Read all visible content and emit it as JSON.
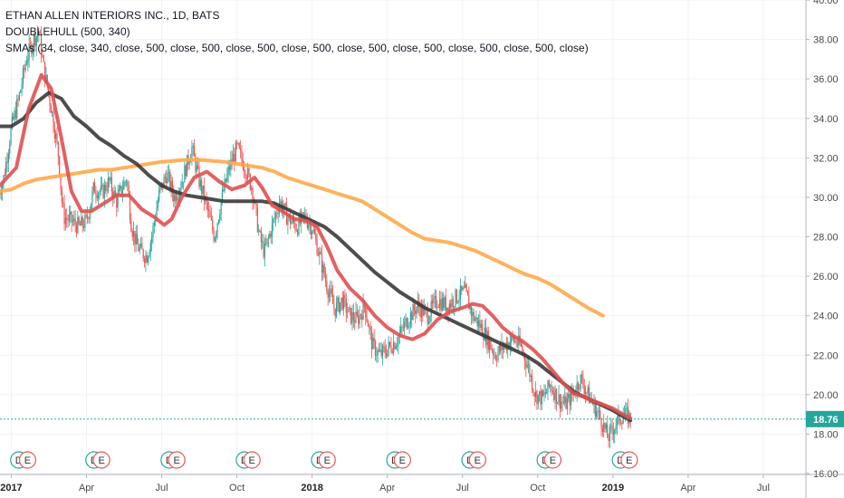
{
  "legend": {
    "line1": "ETHAN ALLEN INTERIORS INC., 1D, BATS",
    "line2": "DOUBLEHULL (500, 340)",
    "line3": "SMAs (34, close, 340, close, 500, close, 500, close, 500, close, 500, close, 500, close, 500, close, 500, close, 500, close)"
  },
  "price_badge": "18.76",
  "colors": {
    "fast_ma": "#e05050",
    "slow_ma": "#3a3a3a",
    "long_ma": "#ffa94a",
    "candle_up": "#26a69a",
    "candle_down": "#ef5350",
    "badge": "#26a69a",
    "dividend": "#26a69a",
    "earnings": "#ef5350"
  },
  "chart_data": {
    "type": "line",
    "title": "ETHAN ALLEN INTERIORS INC., 1D, BATS",
    "x_ticks": [
      "2017",
      "Apr",
      "Jul",
      "Oct",
      "2018",
      "Apr",
      "Jul",
      "Oct",
      "2019",
      "Apr",
      "Jul"
    ],
    "x_tick_months": [
      0,
      3,
      6,
      9,
      12,
      15,
      18,
      21,
      24,
      27,
      30
    ],
    "y_ticks": [
      "16.00",
      "18.00",
      "20.00",
      "22.00",
      "24.00",
      "26.00",
      "28.00",
      "30.00",
      "32.00",
      "34.00",
      "36.00",
      "38.00",
      "40.00"
    ],
    "ylim": [
      16,
      40
    ],
    "xlim_months": [
      -0.45,
      31.7
    ],
    "last_price": 18.76,
    "price_path": [
      [
        -0.5,
        30.2
      ],
      [
        -0.3,
        31.0
      ],
      [
        0.0,
        33.5
      ],
      [
        0.3,
        35.0
      ],
      [
        0.6,
        37.0
      ],
      [
        0.9,
        38.0
      ],
      [
        1.1,
        38.4
      ],
      [
        1.3,
        36.5
      ],
      [
        1.6,
        34.5
      ],
      [
        1.9,
        32.0
      ],
      [
        2.0,
        30.0
      ],
      [
        2.1,
        29.0
      ],
      [
        2.4,
        28.8
      ],
      [
        2.7,
        28.5
      ],
      [
        3.0,
        28.8
      ],
      [
        3.3,
        30.5
      ],
      [
        3.6,
        30.2
      ],
      [
        3.9,
        30.8
      ],
      [
        4.2,
        29.8
      ],
      [
        4.6,
        31.0
      ],
      [
        4.8,
        28.5
      ],
      [
        5.0,
        27.6
      ],
      [
        5.2,
        27.2
      ],
      [
        5.4,
        27.0
      ],
      [
        5.6,
        28.0
      ],
      [
        5.9,
        30.2
      ],
      [
        6.2,
        31.2
      ],
      [
        6.5,
        30.0
      ],
      [
        6.8,
        30.8
      ],
      [
        7.2,
        32.5
      ],
      [
        7.5,
        30.8
      ],
      [
        7.8,
        29.5
      ],
      [
        8.1,
        28.0
      ],
      [
        8.4,
        30.0
      ],
      [
        8.7,
        31.5
      ],
      [
        9.0,
        32.5
      ],
      [
        9.3,
        31.6
      ],
      [
        9.6,
        30.5
      ],
      [
        9.9,
        28.0
      ],
      [
        10.1,
        27.2
      ],
      [
        10.4,
        28.5
      ],
      [
        10.7,
        29.8
      ],
      [
        11.0,
        29.0
      ],
      [
        11.4,
        28.5
      ],
      [
        11.7,
        29.0
      ],
      [
        12.0,
        28.5
      ],
      [
        12.3,
        27.0
      ],
      [
        12.6,
        25.5
      ],
      [
        12.9,
        24.3
      ],
      [
        13.2,
        24.8
      ],
      [
        13.5,
        24.0
      ],
      [
        13.8,
        23.8
      ],
      [
        14.1,
        24.5
      ],
      [
        14.4,
        22.5
      ],
      [
        14.7,
        22.0
      ],
      [
        15.0,
        22.3
      ],
      [
        15.4,
        22.8
      ],
      [
        15.8,
        23.8
      ],
      [
        16.2,
        24.5
      ],
      [
        16.6,
        24.0
      ],
      [
        17.0,
        24.8
      ],
      [
        17.4,
        24.5
      ],
      [
        17.8,
        25.0
      ],
      [
        18.1,
        25.2
      ],
      [
        18.4,
        24.0
      ],
      [
        18.7,
        23.5
      ],
      [
        19.0,
        22.8
      ],
      [
        19.3,
        22.0
      ],
      [
        19.6,
        22.4
      ],
      [
        20.0,
        22.8
      ],
      [
        20.3,
        22.5
      ],
      [
        20.6,
        21.5
      ],
      [
        20.9,
        20.0
      ],
      [
        21.2,
        19.8
      ],
      [
        21.5,
        20.5
      ],
      [
        21.8,
        19.8
      ],
      [
        22.1,
        19.5
      ],
      [
        22.4,
        20.0
      ],
      [
        22.7,
        20.8
      ],
      [
        23.0,
        20.0
      ],
      [
        23.3,
        19.3
      ],
      [
        23.6,
        18.5
      ],
      [
        23.8,
        17.8
      ],
      [
        24.1,
        18.5
      ],
      [
        24.4,
        19.0
      ],
      [
        24.7,
        18.8
      ]
    ],
    "series": [
      {
        "name": "SMA 34",
        "points": [
          [
            -0.45,
            30.6
          ],
          [
            0.2,
            31.5
          ],
          [
            0.7,
            34.5
          ],
          [
            1.2,
            36.2
          ],
          [
            1.6,
            35.5
          ],
          [
            2.0,
            33.0
          ],
          [
            2.4,
            30.3
          ],
          [
            2.8,
            29.3
          ],
          [
            3.2,
            29.3
          ],
          [
            3.7,
            29.7
          ],
          [
            4.2,
            30.1
          ],
          [
            4.7,
            30.1
          ],
          [
            5.2,
            29.4
          ],
          [
            5.7,
            29.0
          ],
          [
            6.1,
            28.6
          ],
          [
            6.4,
            28.9
          ],
          [
            6.8,
            30.0
          ],
          [
            7.3,
            31.0
          ],
          [
            7.8,
            31.3
          ],
          [
            8.3,
            30.8
          ],
          [
            8.8,
            30.4
          ],
          [
            9.3,
            30.6
          ],
          [
            9.7,
            31.0
          ],
          [
            10.0,
            30.5
          ],
          [
            10.4,
            29.6
          ],
          [
            10.8,
            29.3
          ],
          [
            11.3,
            28.9
          ],
          [
            11.8,
            28.8
          ],
          [
            12.2,
            28.5
          ],
          [
            12.6,
            27.5
          ],
          [
            13.0,
            26.3
          ],
          [
            13.5,
            25.4
          ],
          [
            14.0,
            24.8
          ],
          [
            14.5,
            24.0
          ],
          [
            15.0,
            23.4
          ],
          [
            15.5,
            23.0
          ],
          [
            16.0,
            22.8
          ],
          [
            16.5,
            23.1
          ],
          [
            17.0,
            23.8
          ],
          [
            17.5,
            24.2
          ],
          [
            18.0,
            24.4
          ],
          [
            18.4,
            24.6
          ],
          [
            18.8,
            24.5
          ],
          [
            19.2,
            24.0
          ],
          [
            19.6,
            23.4
          ],
          [
            20.0,
            23.0
          ],
          [
            20.4,
            22.7
          ],
          [
            20.8,
            22.3
          ],
          [
            21.2,
            21.8
          ],
          [
            21.6,
            21.2
          ],
          [
            22.0,
            20.6
          ],
          [
            22.4,
            20.1
          ],
          [
            22.8,
            19.9
          ],
          [
            23.2,
            19.7
          ],
          [
            23.6,
            19.5
          ],
          [
            24.0,
            19.3
          ],
          [
            24.4,
            19.0
          ],
          [
            24.7,
            18.8
          ]
        ]
      },
      {
        "name": "SMA 340",
        "points": [
          [
            -0.45,
            33.6
          ],
          [
            0.0,
            33.6
          ],
          [
            0.5,
            34.0
          ],
          [
            1.0,
            34.8
          ],
          [
            1.5,
            35.3
          ],
          [
            2.0,
            35.0
          ],
          [
            2.5,
            34.1
          ],
          [
            3.0,
            33.6
          ],
          [
            3.5,
            33.0
          ],
          [
            4.0,
            32.6
          ],
          [
            4.5,
            32.1
          ],
          [
            5.0,
            31.7
          ],
          [
            5.5,
            31.1
          ],
          [
            6.0,
            30.6
          ],
          [
            6.5,
            30.3
          ],
          [
            7.0,
            30.1
          ],
          [
            7.5,
            30.0
          ],
          [
            8.0,
            29.9
          ],
          [
            8.5,
            29.8
          ],
          [
            9.0,
            29.8
          ],
          [
            9.5,
            29.8
          ],
          [
            10.0,
            29.8
          ],
          [
            10.5,
            29.7
          ],
          [
            11.0,
            29.4
          ],
          [
            11.5,
            29.1
          ],
          [
            12.0,
            28.8
          ],
          [
            12.5,
            28.5
          ],
          [
            13.0,
            28.0
          ],
          [
            13.5,
            27.4
          ],
          [
            14.0,
            26.8
          ],
          [
            14.5,
            26.2
          ],
          [
            15.0,
            25.7
          ],
          [
            15.5,
            25.2
          ],
          [
            16.0,
            24.8
          ],
          [
            16.5,
            24.4
          ],
          [
            17.0,
            24.1
          ],
          [
            17.5,
            23.8
          ],
          [
            18.0,
            23.5
          ],
          [
            18.5,
            23.2
          ],
          [
            19.0,
            22.9
          ],
          [
            19.5,
            22.6
          ],
          [
            20.0,
            22.3
          ],
          [
            20.5,
            22.0
          ],
          [
            21.0,
            21.6
          ],
          [
            21.5,
            21.1
          ],
          [
            22.0,
            20.6
          ],
          [
            22.5,
            20.1
          ],
          [
            23.0,
            19.8
          ],
          [
            23.5,
            19.5
          ],
          [
            24.0,
            19.2
          ],
          [
            24.4,
            18.9
          ],
          [
            24.7,
            18.7
          ]
        ]
      },
      {
        "name": "SMA 500",
        "points": [
          [
            -0.45,
            30.3
          ],
          [
            0.0,
            30.4
          ],
          [
            0.5,
            30.7
          ],
          [
            1.0,
            30.9
          ],
          [
            1.5,
            31.0
          ],
          [
            2.0,
            31.1
          ],
          [
            2.5,
            31.2
          ],
          [
            3.0,
            31.3
          ],
          [
            3.5,
            31.4
          ],
          [
            4.0,
            31.4
          ],
          [
            4.5,
            31.5
          ],
          [
            5.0,
            31.6
          ],
          [
            5.5,
            31.7
          ],
          [
            6.0,
            31.8
          ],
          [
            6.5,
            31.85
          ],
          [
            7.0,
            31.9
          ],
          [
            7.5,
            31.9
          ],
          [
            8.0,
            31.85
          ],
          [
            8.5,
            31.8
          ],
          [
            9.0,
            31.7
          ],
          [
            9.5,
            31.6
          ],
          [
            10.0,
            31.5
          ],
          [
            10.5,
            31.3
          ],
          [
            11.0,
            31.0
          ],
          [
            11.5,
            30.8
          ],
          [
            12.0,
            30.6
          ],
          [
            12.5,
            30.4
          ],
          [
            13.0,
            30.2
          ],
          [
            13.5,
            30.0
          ],
          [
            14.0,
            29.8
          ],
          [
            14.5,
            29.4
          ],
          [
            15.0,
            29.0
          ],
          [
            15.5,
            28.6
          ],
          [
            16.0,
            28.2
          ],
          [
            16.5,
            27.9
          ],
          [
            17.0,
            27.8
          ],
          [
            17.5,
            27.7
          ],
          [
            18.0,
            27.5
          ],
          [
            18.5,
            27.3
          ],
          [
            19.0,
            27.0
          ],
          [
            19.5,
            26.7
          ],
          [
            20.0,
            26.4
          ],
          [
            20.5,
            26.1
          ],
          [
            21.0,
            25.9
          ],
          [
            21.5,
            25.6
          ],
          [
            22.0,
            25.2
          ],
          [
            22.5,
            24.8
          ],
          [
            23.0,
            24.4
          ],
          [
            23.3,
            24.2
          ],
          [
            23.6,
            24.0
          ]
        ]
      }
    ],
    "events": [
      {
        "label": "D",
        "kind": "dividend",
        "month": 0.3
      },
      {
        "label": "E",
        "kind": "earnings",
        "month": 0.65
      },
      {
        "label": "D",
        "kind": "dividend",
        "month": 3.3
      },
      {
        "label": "E",
        "kind": "earnings",
        "month": 3.6
      },
      {
        "label": "D",
        "kind": "dividend",
        "month": 6.3
      },
      {
        "label": "E",
        "kind": "earnings",
        "month": 6.6
      },
      {
        "label": "D",
        "kind": "dividend",
        "month": 9.3
      },
      {
        "label": "E",
        "kind": "earnings",
        "month": 9.6
      },
      {
        "label": "D",
        "kind": "dividend",
        "month": 12.3
      },
      {
        "label": "E",
        "kind": "earnings",
        "month": 12.6
      },
      {
        "label": "D",
        "kind": "dividend",
        "month": 15.3
      },
      {
        "label": "E",
        "kind": "earnings",
        "month": 15.6
      },
      {
        "label": "D",
        "kind": "dividend",
        "month": 18.3
      },
      {
        "label": "E",
        "kind": "earnings",
        "month": 18.6
      },
      {
        "label": "D",
        "kind": "dividend",
        "month": 21.3
      },
      {
        "label": "E",
        "kind": "earnings",
        "month": 21.6
      },
      {
        "label": "D",
        "kind": "dividend",
        "month": 24.3
      },
      {
        "label": "E",
        "kind": "earnings",
        "month": 24.65
      }
    ]
  }
}
